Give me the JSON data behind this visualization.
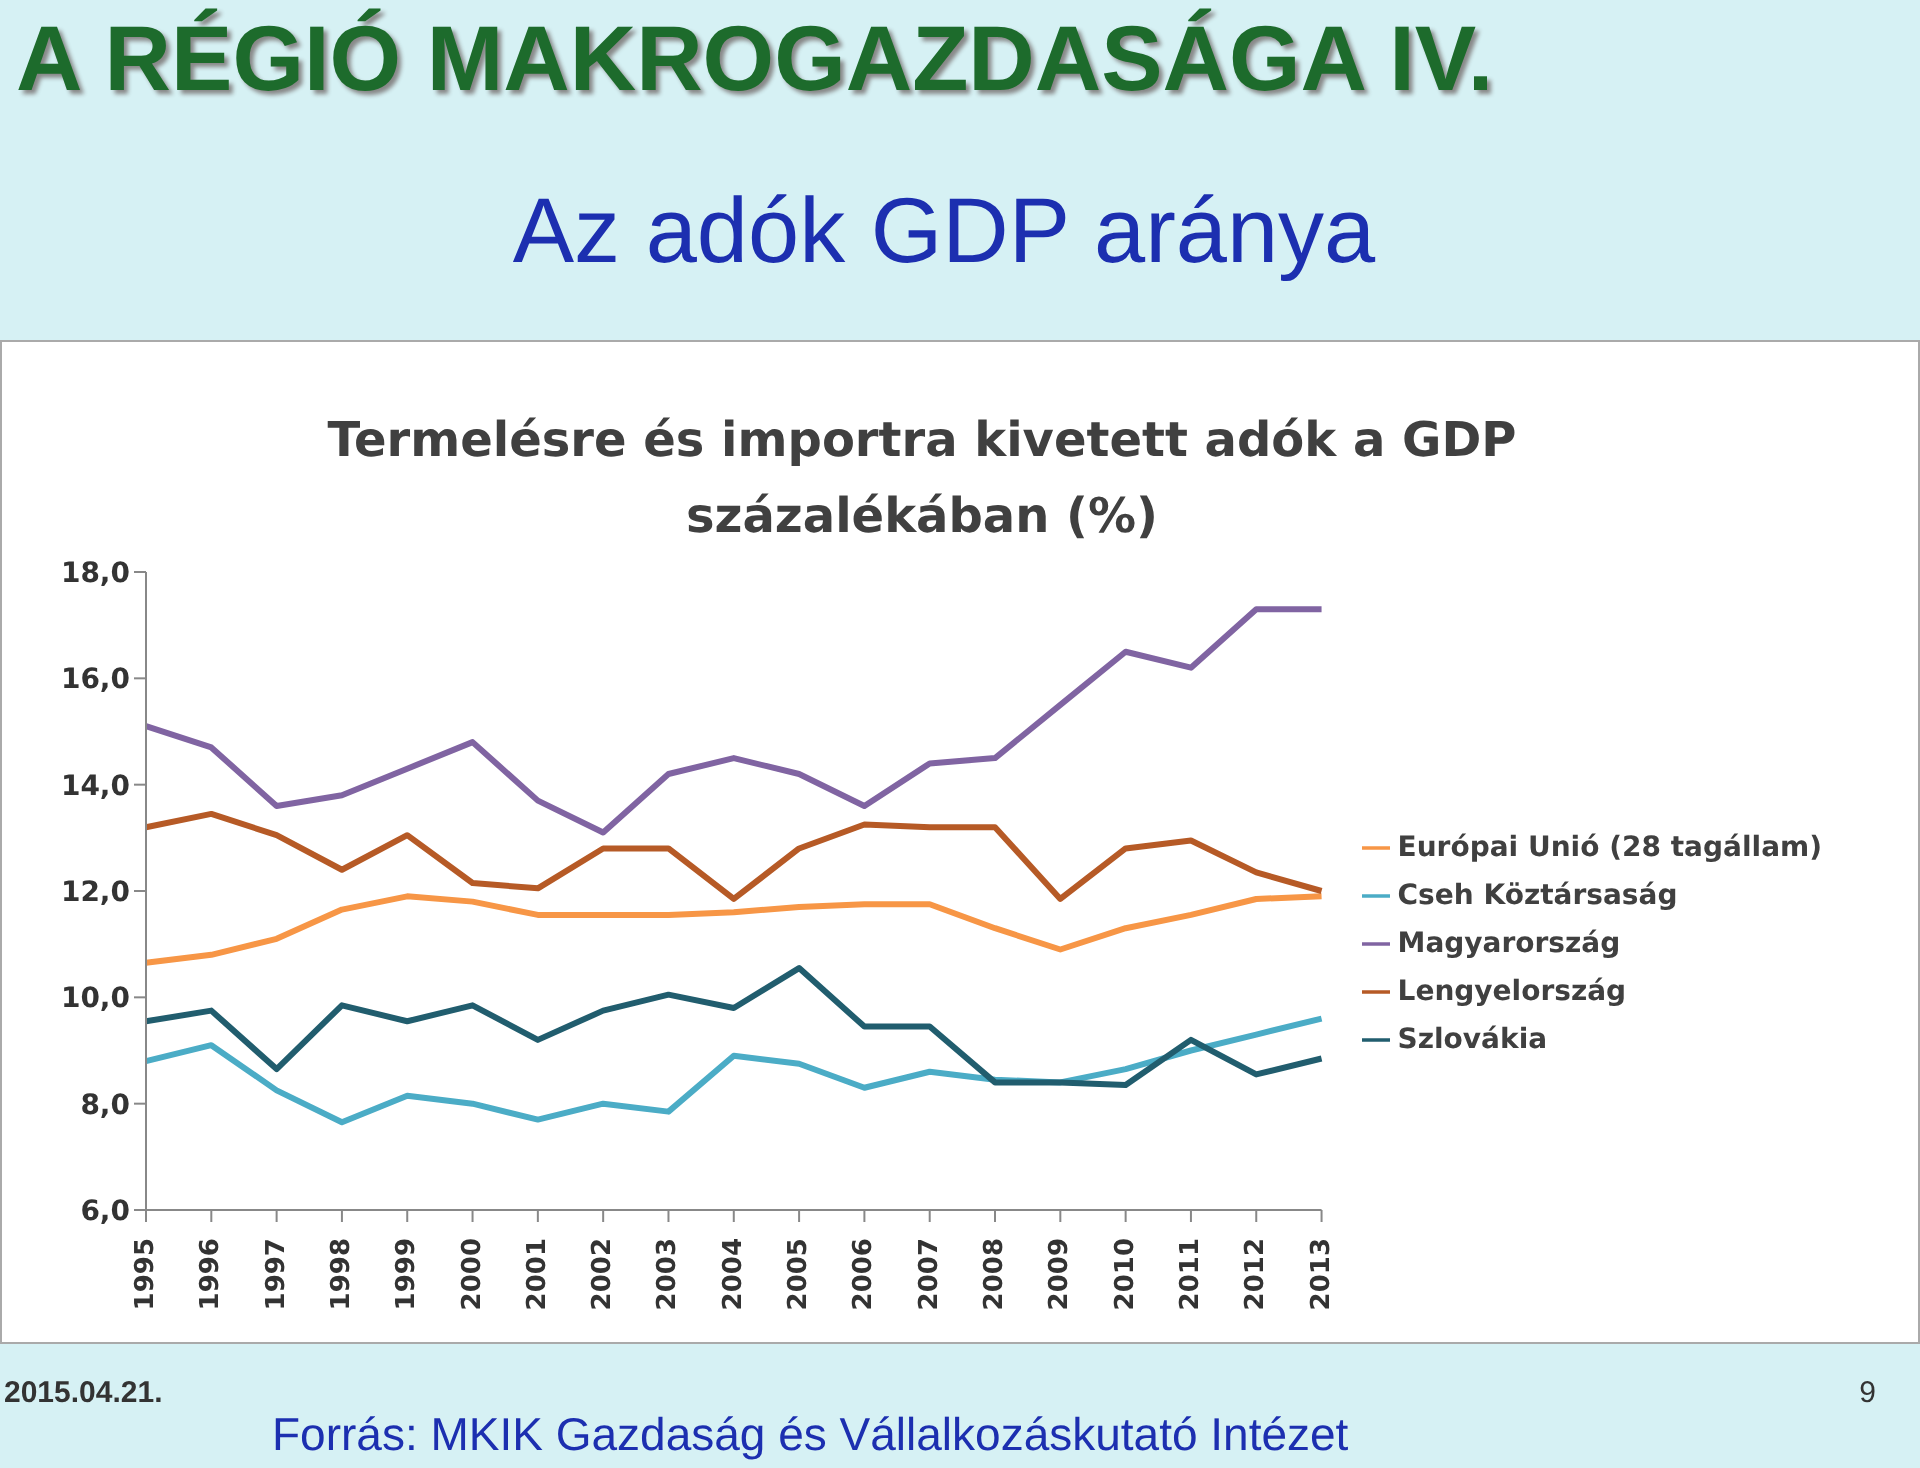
{
  "chart_data": {
    "type": "line",
    "title": "A RÉGIÓ MAKROGAZDASÁGA IV.",
    "subtitle": "Az adók GDP aránya",
    "annotations": [
      "Termelésre és importra kivetett adók a GDP százalékában (%)",
      "2015.04.21.",
      "9",
      "Forrás: MKIK Gazdaság és Vállalkozáskutató Intézet"
    ],
    "categories": [
      "1995",
      "1996",
      "1997",
      "1998",
      "1999",
      "2000",
      "2001",
      "2002",
      "2003",
      "2004",
      "2005",
      "2006",
      "2007",
      "2008",
      "2009",
      "2010",
      "2011",
      "2012",
      "2013"
    ],
    "series": [
      {
        "name": "Európai Unió (28 tagállam)",
        "color": "#f79646",
        "values": [
          10.65,
          10.8,
          11.1,
          11.65,
          11.9,
          11.8,
          11.55,
          11.55,
          11.55,
          11.6,
          11.7,
          11.75,
          11.75,
          11.3,
          10.9,
          11.3,
          11.55,
          11.85,
          11.9
        ]
      },
      {
        "name": "Cseh Köztársaság",
        "color": "#4bacc6",
        "values": [
          8.8,
          9.1,
          8.25,
          7.65,
          8.15,
          8.0,
          7.7,
          8.0,
          7.85,
          8.9,
          8.75,
          8.3,
          8.6,
          8.45,
          8.4,
          8.65,
          9.0,
          9.3,
          9.6
        ]
      },
      {
        "name": "Magyarország",
        "color": "#8064a2",
        "values": [
          15.1,
          14.7,
          13.6,
          13.8,
          14.3,
          14.8,
          13.7,
          13.1,
          14.2,
          14.5,
          14.2,
          13.6,
          14.4,
          14.5,
          15.5,
          16.5,
          16.2,
          17.3,
          17.3
        ]
      },
      {
        "name": "Lengyelország",
        "color": "#b65a26",
        "values": [
          13.2,
          13.45,
          13.05,
          12.4,
          13.05,
          12.15,
          12.05,
          12.8,
          12.8,
          11.85,
          12.8,
          13.25,
          13.2,
          13.2,
          11.85,
          12.8,
          12.95,
          12.35,
          12.0
        ]
      },
      {
        "name": "Szlovákia",
        "color": "#215d6e",
        "values": [
          9.55,
          9.75,
          8.65,
          9.85,
          9.55,
          9.85,
          9.2,
          9.75,
          10.05,
          9.8,
          10.55,
          9.45,
          9.45,
          8.4,
          8.4,
          8.35,
          9.2,
          8.55,
          8.85
        ]
      }
    ],
    "ylim": [
      6,
      18
    ],
    "yticks": [
      {
        "value": 6,
        "label": "6,0"
      },
      {
        "value": 8,
        "label": "8,0"
      },
      {
        "value": 10,
        "label": "10,0"
      },
      {
        "value": 12,
        "label": "12,0"
      },
      {
        "value": 14,
        "label": "14,0"
      },
      {
        "value": 16,
        "label": "16,0"
      },
      {
        "value": 18,
        "label": "18,0"
      }
    ],
    "legend": "right",
    "marker": "none",
    "line_style": "solid"
  }
}
